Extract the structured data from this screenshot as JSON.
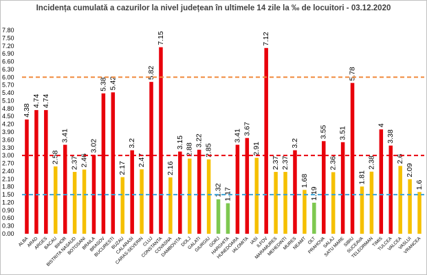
{
  "chart_data": {
    "type": "bar",
    "title": "Incidența cumulată a cazurilor la nivel județean în ultimele 14 zile la ‰ de locuitori - 03.12.2020",
    "xlabel": "",
    "ylabel": "",
    "ylim": [
      0,
      7.8
    ],
    "ytick_step": 0.3,
    "ytick_labels": [
      "0.00",
      "0.30",
      "0.60",
      "0.90",
      "1.20",
      "1.50",
      "1.80",
      "2.10",
      "2.40",
      "2.70",
      "3.00",
      "3.30",
      "3.60",
      "3.90",
      "4.20",
      "4.50",
      "4.80",
      "5.10",
      "5.40",
      "5.70",
      "6.00",
      "6.30",
      "6.60",
      "6.90",
      "7.20",
      "7.50",
      "7.80"
    ],
    "grid": false,
    "legend": "none",
    "categories": [
      "ALBA",
      "ARAD",
      "ARGES",
      "BACAU",
      "BIHOR",
      "BISTRITA NASAUD",
      "BOTOSANI",
      "BRAILA",
      "BRASOV",
      "BUCURESTI",
      "BUZAU",
      "CALARASI",
      "CARAS-SEVERIN",
      "CLUJ",
      "CONSTANTA",
      "COVASNA",
      "DAMBOVITA",
      "DOLJ",
      "GALATI",
      "GIURGIU",
      "GORJ",
      "HARGHITA",
      "HUNEDOARA",
      "IALOMITA",
      "IASI",
      "ILFOV",
      "MARAMURES",
      "MEHEDINTI",
      "MURES",
      "NEAMT",
      "OLT",
      "PRAHOVA",
      "SALAJ",
      "SATU MARE",
      "SIBIU",
      "SUCEAVA",
      "TELEORMAN",
      "TIMIS",
      "TULCEA",
      "VALCEA",
      "VASLUI",
      "VRANCEA"
    ],
    "values": [
      4.38,
      4.74,
      4.74,
      2.58,
      3.41,
      2.37,
      2.46,
      3.02,
      5.38,
      5.42,
      2.17,
      3.2,
      2.47,
      5.82,
      7.15,
      2.16,
      3.15,
      2.88,
      3.22,
      2.85,
      1.32,
      1.17,
      3.41,
      3.67,
      2.91,
      7.12,
      2.37,
      2.37,
      3.2,
      1.68,
      1.19,
      3.55,
      2.36,
      3.51,
      5.78,
      1.81,
      2.38,
      4,
      3.38,
      2.6,
      2.09,
      1.6
    ],
    "value_labels": [
      "4.38",
      "4.74",
      "4.74",
      "2.58",
      "3.41",
      "2.37",
      "2.46",
      "3.02",
      "5.38",
      "5.42",
      "2.17",
      "3.2",
      "2.47",
      "5.82",
      "7.15",
      "2.16",
      "3.15",
      "2.88",
      "3.22",
      "2.85",
      "1.32",
      "1.17",
      "3.41",
      "3.67",
      "2.91",
      "7.12",
      "2.37",
      "2.37",
      "3.2",
      "1.68",
      "1.19",
      "3.55",
      "2.36",
      "3.51",
      "5.78",
      "1.81",
      "2.38",
      "4",
      "3.38",
      "2.6",
      "2.09",
      "1.6"
    ],
    "colors": {
      "red": "#e8000b",
      "yellow": "#f5c000",
      "green": "#7ec850"
    },
    "color_thresholds": {
      "green_max": 1.5,
      "yellow_max": 3.0
    },
    "reference_lines": [
      {
        "value": 6.0,
        "color": "#f08a3c",
        "style": "dashed"
      },
      {
        "value": 3.0,
        "color": "#e8000b",
        "style": "dashed"
      },
      {
        "value": 1.5,
        "color": "#3aa3d8",
        "style": "dashed"
      }
    ]
  }
}
